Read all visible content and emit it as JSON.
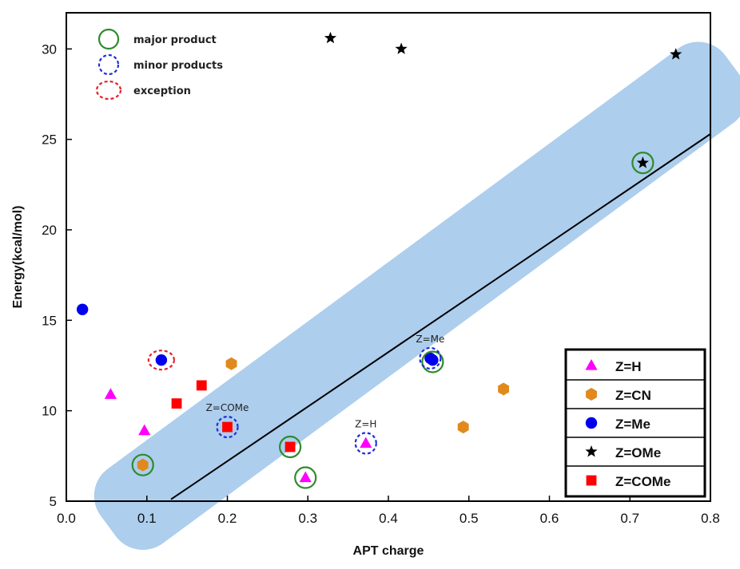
{
  "chart_data": {
    "type": "scatter",
    "title": "",
    "xlabel": "APT charge",
    "ylabel": "Energy(kcal/mol)",
    "xlim": [
      0.0,
      0.8
    ],
    "ylim": [
      5,
      32
    ],
    "xticks": [
      "0.0",
      "0.1",
      "0.2",
      "0.3",
      "0.4",
      "0.5",
      "0.6",
      "0.7",
      "0.8"
    ],
    "yticks": [
      "5",
      "10",
      "15",
      "20",
      "25",
      "30"
    ],
    "grid": false,
    "legend_position": "bottom-right",
    "series": [
      {
        "name": "Z=H",
        "marker": "triangle",
        "color": "#ff00ff",
        "points": [
          [
            0.055,
            10.9
          ],
          [
            0.097,
            8.9
          ],
          [
            0.297,
            6.3
          ],
          [
            0.372,
            8.2
          ]
        ]
      },
      {
        "name": "Z=CN",
        "marker": "hexagon",
        "color": "#e08a1e",
        "points": [
          [
            0.095,
            7.0
          ],
          [
            0.205,
            12.6
          ],
          [
            0.493,
            9.1
          ],
          [
            0.543,
            11.2
          ]
        ]
      },
      {
        "name": "Z=Me",
        "marker": "circle",
        "color": "#0000ee",
        "points": [
          [
            0.02,
            15.6
          ],
          [
            0.118,
            12.8
          ],
          [
            0.452,
            12.9
          ],
          [
            0.455,
            12.8
          ]
        ]
      },
      {
        "name": "Z=OMe",
        "marker": "star",
        "color": "#000000",
        "points": [
          [
            0.328,
            30.6
          ],
          [
            0.416,
            30.0
          ],
          [
            0.757,
            29.7
          ],
          [
            0.716,
            23.7
          ]
        ]
      },
      {
        "name": "Z=COMe",
        "marker": "square",
        "color": "#ff0000",
        "points": [
          [
            0.137,
            10.4
          ],
          [
            0.168,
            11.4
          ],
          [
            0.2,
            9.1
          ],
          [
            0.278,
            8.0
          ]
        ]
      }
    ],
    "fit_line": {
      "x": [
        0.13,
        0.8
      ],
      "y": [
        5.1,
        25.3
      ],
      "color": "#000000"
    },
    "highlight_band": {
      "color": "#a9cbec"
    },
    "circle_markers": [
      {
        "type": "major",
        "x": 0.095,
        "y": 7.0
      },
      {
        "type": "major",
        "x": 0.278,
        "y": 8.0
      },
      {
        "type": "major",
        "x": 0.297,
        "y": 6.3
      },
      {
        "type": "major",
        "x": 0.455,
        "y": 12.7
      },
      {
        "type": "major",
        "x": 0.716,
        "y": 23.7
      },
      {
        "type": "minor",
        "x": 0.2,
        "y": 9.1
      },
      {
        "type": "minor",
        "x": 0.372,
        "y": 8.2
      },
      {
        "type": "minor",
        "x": 0.452,
        "y": 12.9
      },
      {
        "type": "exception",
        "x": 0.118,
        "y": 12.8
      }
    ],
    "circle_marker_legend": [
      {
        "type": "major",
        "label": "major product",
        "color": "#2e8b2e"
      },
      {
        "type": "minor",
        "label": "minor products",
        "color": "#1f2fd6"
      },
      {
        "type": "exception",
        "label": "exception",
        "color": "#e0242a"
      }
    ],
    "annotations": [
      {
        "text": "Z=COMe",
        "x": 0.2,
        "y": 9.1
      },
      {
        "text": "Z=H",
        "x": 0.372,
        "y": 8.2
      },
      {
        "text": "Z=Me",
        "x": 0.452,
        "y": 12.9
      }
    ]
  }
}
